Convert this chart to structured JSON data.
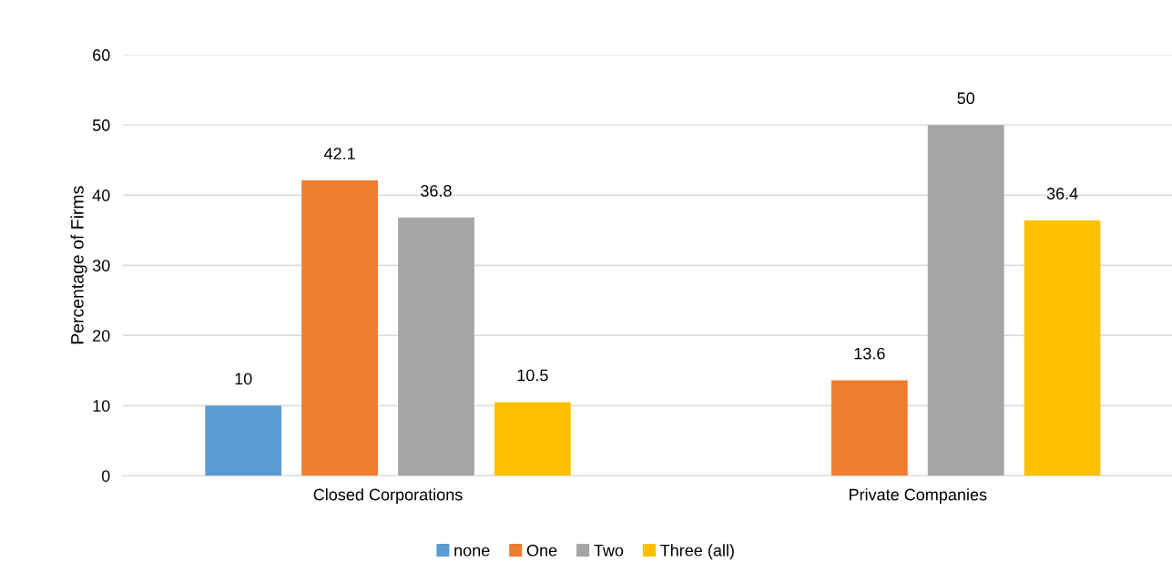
{
  "chart_data": {
    "type": "bar",
    "ylabel": "Percentage of Firms",
    "categories": [
      "Closed Corporations",
      "Private Companies"
    ],
    "series": [
      {
        "name": "none",
        "color": "#5b9bd5",
        "values": [
          10,
          null
        ]
      },
      {
        "name": "One",
        "color": "#ed7d31",
        "values": [
          42.1,
          13.6
        ]
      },
      {
        "name": "Two",
        "color": "#a5a5a5",
        "values": [
          36.8,
          50
        ]
      },
      {
        "name": "Three (all)",
        "color": "#ffc000",
        "values": [
          10.5,
          36.4
        ]
      }
    ],
    "ylim": [
      0,
      60
    ],
    "yticks": [
      0,
      10,
      20,
      30,
      40,
      50,
      60
    ],
    "grid": "y",
    "legend": "bottom",
    "data_labels": true
  }
}
